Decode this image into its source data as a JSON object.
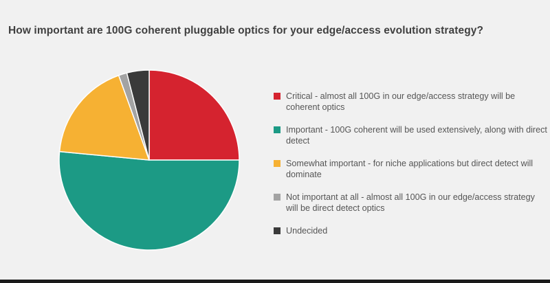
{
  "chart_data": {
    "type": "pie",
    "title": "How important are 100G coherent pluggable optics for your edge/access evolution strategy?",
    "slices": [
      {
        "label": "Critical  - almost all 100G in our edge/access strategy will be coherent optics",
        "value": 25,
        "color": "#d5232f"
      },
      {
        "label": "Important - 100G coherent will be used extensively, along with direct detect",
        "value": 51.5,
        "color": "#1c9a85"
      },
      {
        "label": "Somewhat important  - for niche applications but direct detect will dominate",
        "value": 18,
        "color": "#f6b133"
      },
      {
        "label": "Not important at all - almost all 100G in our edge/access strategy will be direct detect optics",
        "value": 1.5,
        "color": "#a3a3a3"
      },
      {
        "label": "Undecided",
        "value": 4,
        "color": "#3a3a3a"
      }
    ],
    "legend_position": "right"
  }
}
